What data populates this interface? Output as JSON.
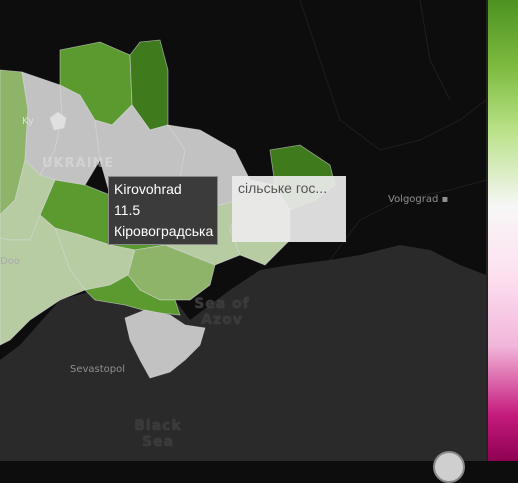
{
  "map": {
    "country_label": "UKRAINE",
    "city_labels": [
      {
        "name": "Volgograd"
      },
      {
        "name": "Sevastopol"
      },
      {
        "name": "Doo"
      },
      {
        "name": "Ky"
      }
    ],
    "sea_labels": [
      {
        "name": "Sea of Azov",
        "lines": [
          "Sea",
          "of",
          "Azov"
        ]
      },
      {
        "name": "Black Sea",
        "lines": [
          "Black",
          "Sea"
        ]
      }
    ],
    "colors": {
      "background": "#0d0d0d",
      "sea": "#2b2b2b",
      "dark_green": "#3f7a1d",
      "mid_green": "#5b9a2f",
      "light_green": "#8eb46a",
      "pale_green": "#b7cca3",
      "grey": "#c2c2c2"
    }
  },
  "tooltip": {
    "region_en": "Kirovohrad",
    "value": "11.5",
    "region_uk": "Кіровоградська"
  },
  "tooltip_secondary": {
    "text": "сільське гос..."
  },
  "legend": {
    "top_color": "#4d9221",
    "mid_color": "#f7f7f7",
    "bottom_color": "#c51b7d"
  }
}
